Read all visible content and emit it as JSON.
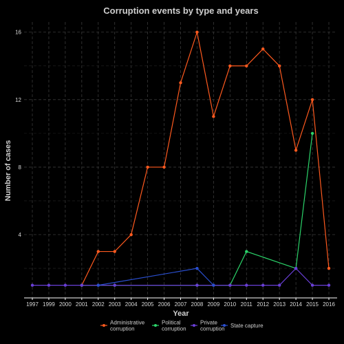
{
  "chart_data": {
    "type": "line",
    "title": "Corruption events by type and years",
    "xlabel": "Year",
    "ylabel": "Number of cases",
    "x": [
      "1997",
      "1999",
      "2000",
      "2001",
      "2002",
      "2003",
      "2004",
      "2005",
      "2006",
      "2007",
      "2008",
      "2009",
      "2010",
      "2011",
      "2012",
      "2013",
      "2014",
      "2015",
      "2016"
    ],
    "yticks": [
      4,
      8,
      12,
      16
    ],
    "ylim": [
      0.25,
      16.6
    ],
    "grid": true,
    "legend_position": "bottom",
    "series": [
      {
        "name": "Administrative\ncorruption",
        "color": "#ff5a1f",
        "points": [
          {
            "x": "2001",
            "y": 1
          },
          {
            "x": "2002",
            "y": 3
          },
          {
            "x": "2003",
            "y": 3
          },
          {
            "x": "2004",
            "y": 4
          },
          {
            "x": "2005",
            "y": 8
          },
          {
            "x": "2006",
            "y": 8
          },
          {
            "x": "2007",
            "y": 13
          },
          {
            "x": "2008",
            "y": 16
          },
          {
            "x": "2009",
            "y": 11
          },
          {
            "x": "2010",
            "y": 14
          },
          {
            "x": "2011",
            "y": 14
          },
          {
            "x": "2012",
            "y": 15
          },
          {
            "x": "2013",
            "y": 14
          },
          {
            "x": "2014",
            "y": 9
          },
          {
            "x": "2015",
            "y": 12
          },
          {
            "x": "2016",
            "y": 2
          }
        ]
      },
      {
        "name": "Political\ncorruption",
        "color": "#2bd46a",
        "points": [
          {
            "x": "2001",
            "y": 1
          },
          {
            "x": "2003",
            "y": 1
          },
          {
            "x": "2008",
            "y": 1
          },
          {
            "x": "2010",
            "y": 1
          },
          {
            "x": "2011",
            "y": 3
          },
          {
            "x": "2014",
            "y": 2
          },
          {
            "x": "2015",
            "y": 10
          }
        ]
      },
      {
        "name": "Private\ncorruption",
        "color": "#6a3fd8",
        "points": [
          {
            "x": "1997",
            "y": 1
          },
          {
            "x": "1999",
            "y": 1
          },
          {
            "x": "2000",
            "y": 1
          },
          {
            "x": "2001",
            "y": 1
          },
          {
            "x": "2002",
            "y": 1
          },
          {
            "x": "2003",
            "y": 1
          },
          {
            "x": "2008",
            "y": 1
          },
          {
            "x": "2009",
            "y": 1
          },
          {
            "x": "2010",
            "y": 1
          },
          {
            "x": "2011",
            "y": 1
          },
          {
            "x": "2012",
            "y": 1
          },
          {
            "x": "2013",
            "y": 1
          },
          {
            "x": "2014",
            "y": 2
          },
          {
            "x": "2015",
            "y": 1
          },
          {
            "x": "2016",
            "y": 1
          }
        ]
      },
      {
        "name": "State capture",
        "color": "#2a4fd0",
        "points": [
          {
            "x": "2002",
            "y": 1
          },
          {
            "x": "2008",
            "y": 2
          },
          {
            "x": "2009",
            "y": 1
          }
        ]
      }
    ]
  }
}
